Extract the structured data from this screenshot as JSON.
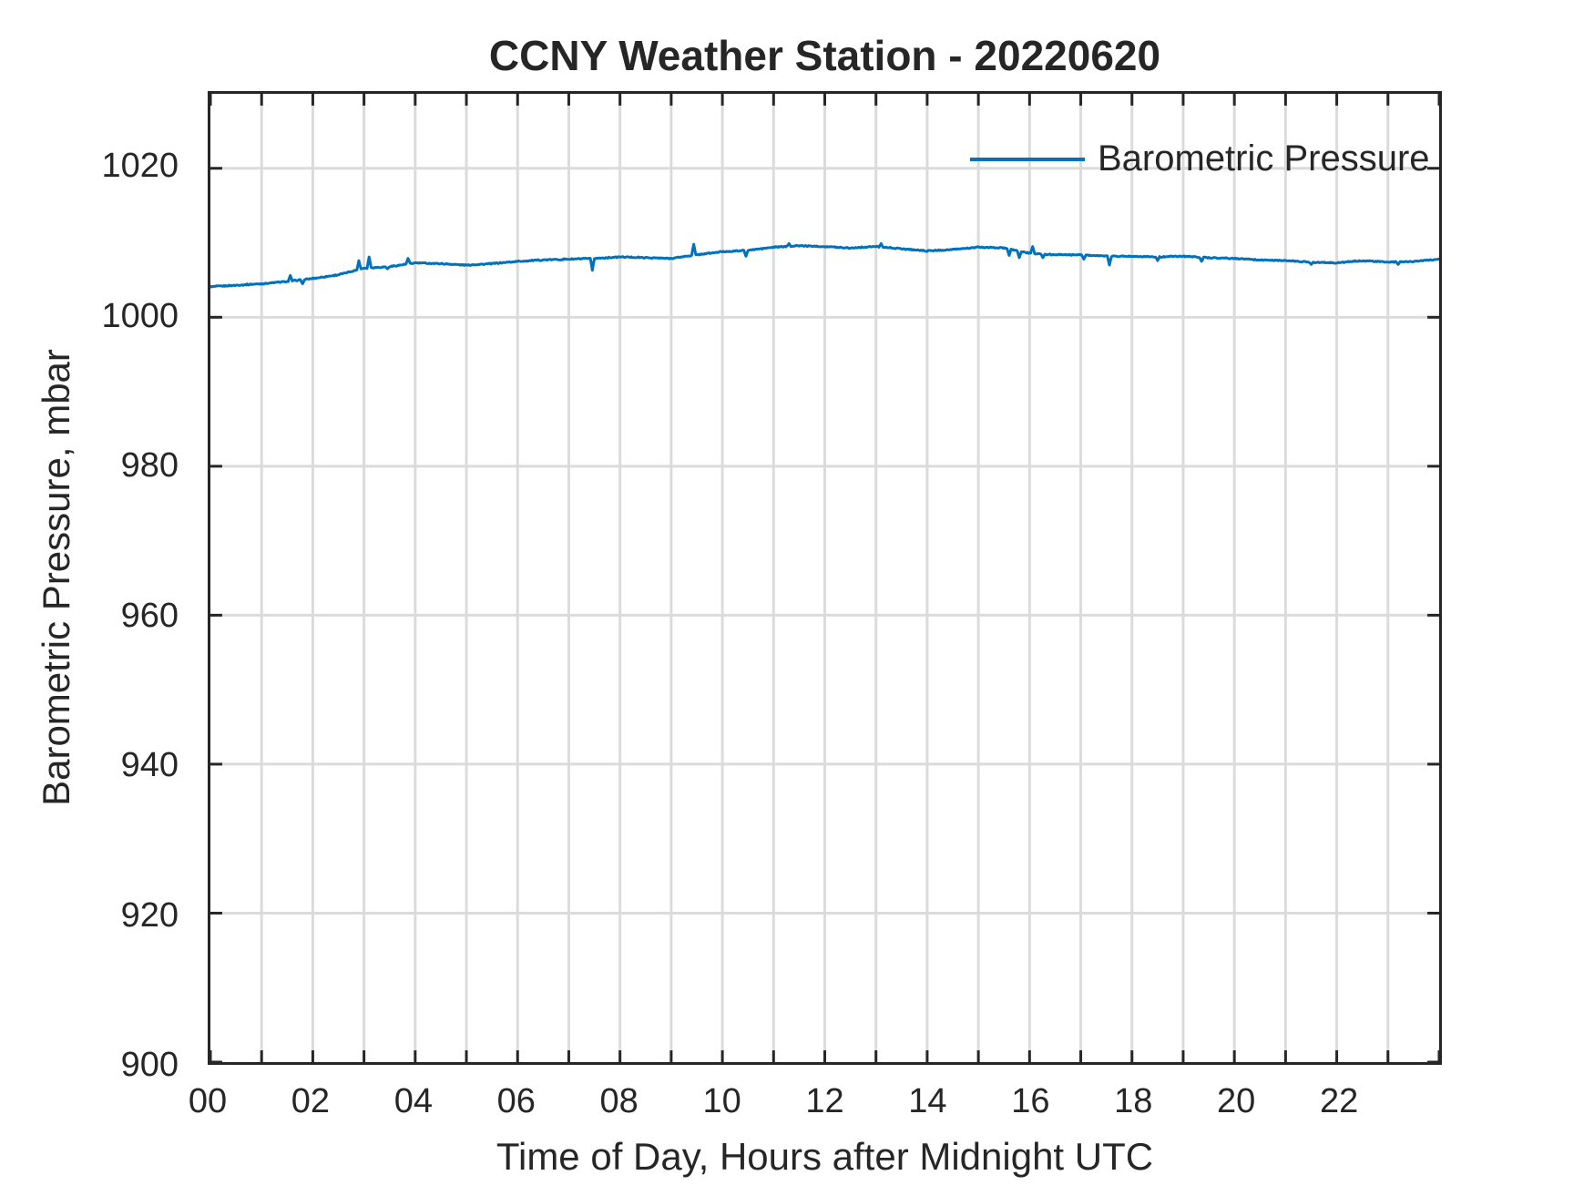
{
  "title": "CCNY Weather Station - 20220620",
  "chart_data": {
    "type": "line",
    "title": "CCNY Weather Station - 20220620",
    "xlabel": "Time of Day, Hours after Midnight UTC",
    "ylabel": "Barometric Pressure, mbar",
    "xlim": [
      0,
      24
    ],
    "ylim": [
      900,
      1030
    ],
    "grid": "on",
    "grid_color": "#dbdbdb",
    "axes_color": "#262626",
    "background": "#ffffff",
    "xticks": [
      {
        "pos": 0,
        "label": "00"
      },
      {
        "pos": 2,
        "label": "02"
      },
      {
        "pos": 4,
        "label": "04"
      },
      {
        "pos": 6,
        "label": "06"
      },
      {
        "pos": 8,
        "label": "08"
      },
      {
        "pos": 10,
        "label": "10"
      },
      {
        "pos": 12,
        "label": "12"
      },
      {
        "pos": 14,
        "label": "14"
      },
      {
        "pos": 16,
        "label": "16"
      },
      {
        "pos": 18,
        "label": "18"
      },
      {
        "pos": 20,
        "label": "20"
      },
      {
        "pos": 22,
        "label": "22"
      }
    ],
    "yticks": [
      {
        "pos": 900,
        "label": "900"
      },
      {
        "pos": 920,
        "label": "920"
      },
      {
        "pos": 940,
        "label": "940"
      },
      {
        "pos": 960,
        "label": "960"
      },
      {
        "pos": 980,
        "label": "980"
      },
      {
        "pos": 1000,
        "label": "1000"
      },
      {
        "pos": 1020,
        "label": "1020"
      }
    ],
    "x_grid_hours": [
      1,
      2,
      3,
      4,
      5,
      6,
      7,
      8,
      9,
      10,
      11,
      12,
      13,
      14,
      15,
      16,
      17,
      18,
      19,
      20,
      21,
      22,
      23
    ],
    "y_grid_values": [
      920,
      940,
      960,
      980,
      1000,
      1020
    ],
    "tick_interval_x_hours": 1,
    "legend": {
      "label": "Barometric Pressure",
      "position": "top-right",
      "box": "off"
    },
    "series": [
      {
        "name": "Barometric Pressure",
        "color": "#0072BD",
        "line_width": 3,
        "x_hours": [
          0,
          0.5,
          1,
          1.5,
          2,
          2.5,
          3,
          3.5,
          4,
          4.5,
          5,
          5.5,
          6,
          6.5,
          7,
          7.5,
          8,
          8.5,
          9,
          9.5,
          10,
          10.5,
          11,
          11.5,
          12,
          12.5,
          13,
          13.5,
          14,
          14.5,
          15,
          15.5,
          16,
          16.5,
          17,
          17.5,
          18,
          18.5,
          19,
          19.5,
          20,
          20.5,
          21,
          21.5,
          22,
          22.5,
          23,
          23.5,
          24
        ],
        "values": [
          1004.1,
          1004.3,
          1004.5,
          1004.8,
          1005.2,
          1005.7,
          1006.6,
          1006.8,
          1007.3,
          1007.2,
          1007.0,
          1007.2,
          1007.5,
          1007.7,
          1007.8,
          1007.9,
          1008.1,
          1008.0,
          1007.9,
          1008.4,
          1008.8,
          1009.0,
          1009.4,
          1009.6,
          1009.5,
          1009.3,
          1009.5,
          1009.2,
          1008.9,
          1009.1,
          1009.4,
          1009.3,
          1008.6,
          1008.4,
          1008.4,
          1008.2,
          1008.2,
          1008.1,
          1008.2,
          1008.0,
          1007.9,
          1007.7,
          1007.6,
          1007.4,
          1007.3,
          1007.6,
          1007.4,
          1007.5,
          1007.8
        ],
        "spikes": [
          [
            1.55,
            1005.6
          ],
          [
            1.8,
            1004.5
          ],
          [
            2.9,
            1007.6
          ],
          [
            3.1,
            1008.1
          ],
          [
            3.45,
            1006.5
          ],
          [
            3.85,
            1007.9
          ],
          [
            7.45,
            1006.3
          ],
          [
            9.45,
            1009.8
          ],
          [
            10.45,
            1008.2
          ],
          [
            11.3,
            1009.9
          ],
          [
            13.1,
            1009.9
          ],
          [
            15.6,
            1008.3
          ],
          [
            15.8,
            1008.0
          ],
          [
            16.05,
            1009.5
          ],
          [
            16.25,
            1008.0
          ],
          [
            17.05,
            1007.8
          ],
          [
            17.55,
            1007.0
          ],
          [
            18.5,
            1007.6
          ],
          [
            19.35,
            1007.5
          ],
          [
            21.5,
            1007.1
          ],
          [
            23.2,
            1007.1
          ]
        ],
        "noise_mbar": 0.09
      }
    ]
  }
}
